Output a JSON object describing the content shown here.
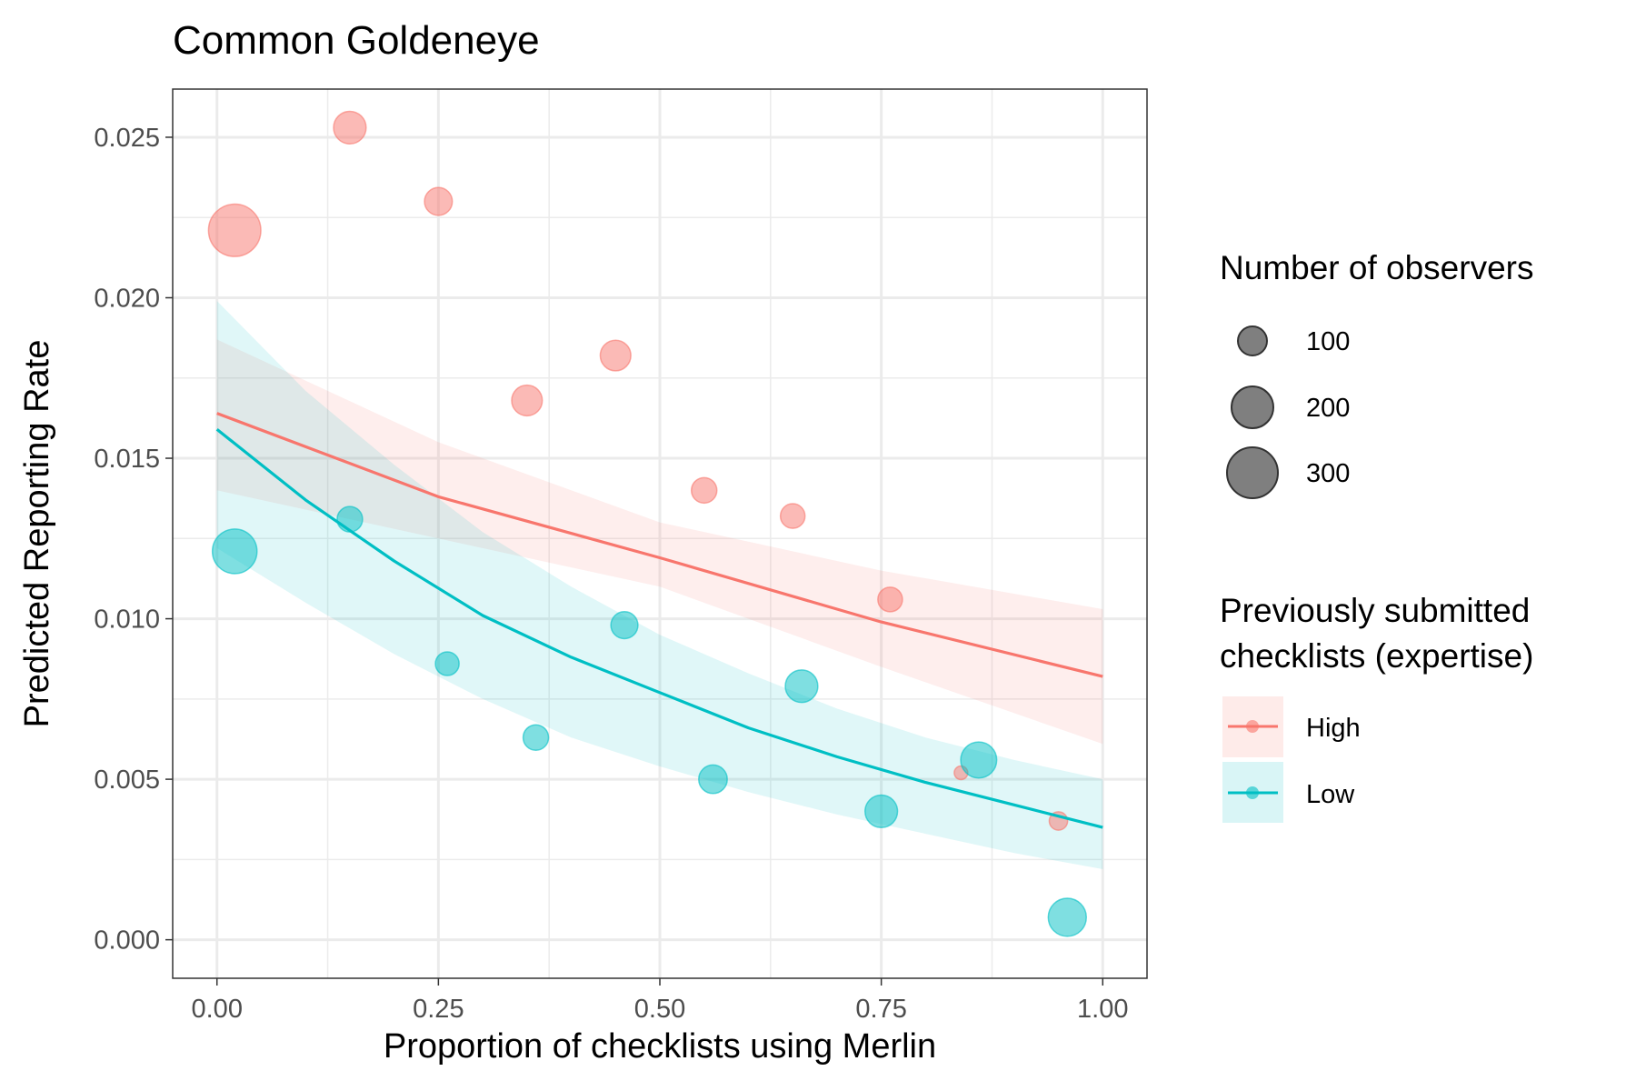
{
  "chart_data": {
    "type": "scatter",
    "title": "Common Goldeneye",
    "xlabel": "Proportion of checklists using Merlin",
    "ylabel": "Predicted Reporting Rate",
    "xlim": [
      -0.05,
      1.05
    ],
    "ylim": [
      -0.0012,
      0.0265
    ],
    "x_ticks": [
      0,
      0.25,
      0.5,
      0.75,
      1
    ],
    "x_tick_labels": [
      "0.00",
      "0.25",
      "0.50",
      "0.75",
      "1.00"
    ],
    "y_ticks": [
      0,
      0.005,
      0.01,
      0.015,
      0.02,
      0.025
    ],
    "y_tick_labels": [
      "0.000",
      "0.005",
      "0.010",
      "0.015",
      "0.020",
      "0.025"
    ],
    "grid": true,
    "legend_position": "right",
    "size_legend": {
      "title": "Number of observers",
      "entries": [
        {
          "label": "100",
          "value": 100
        },
        {
          "label": "200",
          "value": 200
        },
        {
          "label": "300",
          "value": 300
        }
      ]
    },
    "color_legend": {
      "title_lines": [
        "Previously submitted",
        "checklists (expertise)"
      ],
      "entries": [
        "High",
        "Low"
      ]
    },
    "series": [
      {
        "name": "High",
        "color": "#F8766D",
        "points": [
          {
            "x": 0.02,
            "y": 0.0221,
            "n": 330
          },
          {
            "x": 0.15,
            "y": 0.0253,
            "n": 110
          },
          {
            "x": 0.25,
            "y": 0.023,
            "n": 75
          },
          {
            "x": 0.35,
            "y": 0.0168,
            "n": 95
          },
          {
            "x": 0.45,
            "y": 0.0182,
            "n": 95
          },
          {
            "x": 0.55,
            "y": 0.014,
            "n": 60
          },
          {
            "x": 0.65,
            "y": 0.0132,
            "n": 55
          },
          {
            "x": 0.76,
            "y": 0.0106,
            "n": 55
          },
          {
            "x": 0.84,
            "y": 0.0052,
            "n": 10
          },
          {
            "x": 0.95,
            "y": 0.0037,
            "n": 25
          }
        ],
        "fit": {
          "x": [
            0,
            0.25,
            0.5,
            0.75,
            1
          ],
          "y": [
            0.0164,
            0.0138,
            0.0119,
            0.0099,
            0.0082
          ]
        },
        "ci_lower": [
          0.014,
          0.0125,
          0.011,
          0.0085,
          0.0061
        ],
        "ci_upper": [
          0.0187,
          0.0155,
          0.013,
          0.0115,
          0.0103
        ]
      },
      {
        "name": "Low",
        "color": "#00BFC4",
        "points": [
          {
            "x": 0.02,
            "y": 0.0121,
            "n": 230
          },
          {
            "x": 0.15,
            "y": 0.0131,
            "n": 60
          },
          {
            "x": 0.26,
            "y": 0.0086,
            "n": 50
          },
          {
            "x": 0.36,
            "y": 0.0063,
            "n": 60
          },
          {
            "x": 0.46,
            "y": 0.0098,
            "n": 70
          },
          {
            "x": 0.56,
            "y": 0.005,
            "n": 80
          },
          {
            "x": 0.66,
            "y": 0.0079,
            "n": 110
          },
          {
            "x": 0.75,
            "y": 0.004,
            "n": 110
          },
          {
            "x": 0.86,
            "y": 0.0056,
            "n": 140
          },
          {
            "x": 0.96,
            "y": 0.0007,
            "n": 160
          }
        ],
        "fit": {
          "x": [
            0,
            0.1,
            0.2,
            0.3,
            0.4,
            0.5,
            0.6,
            0.7,
            0.8,
            0.9,
            1
          ],
          "y": [
            0.0159,
            0.0137,
            0.0118,
            0.0101,
            0.0088,
            0.0077,
            0.0066,
            0.0057,
            0.0049,
            0.0042,
            0.0035
          ]
        },
        "ci_lower": [
          0.0122,
          0.0105,
          0.0089,
          0.0075,
          0.0063,
          0.0054,
          0.0046,
          0.0039,
          0.0033,
          0.0027,
          0.0022
        ],
        "ci_upper": [
          0.0199,
          0.0171,
          0.0148,
          0.0127,
          0.011,
          0.0095,
          0.0083,
          0.0072,
          0.0063,
          0.0056,
          0.005
        ]
      }
    ]
  }
}
